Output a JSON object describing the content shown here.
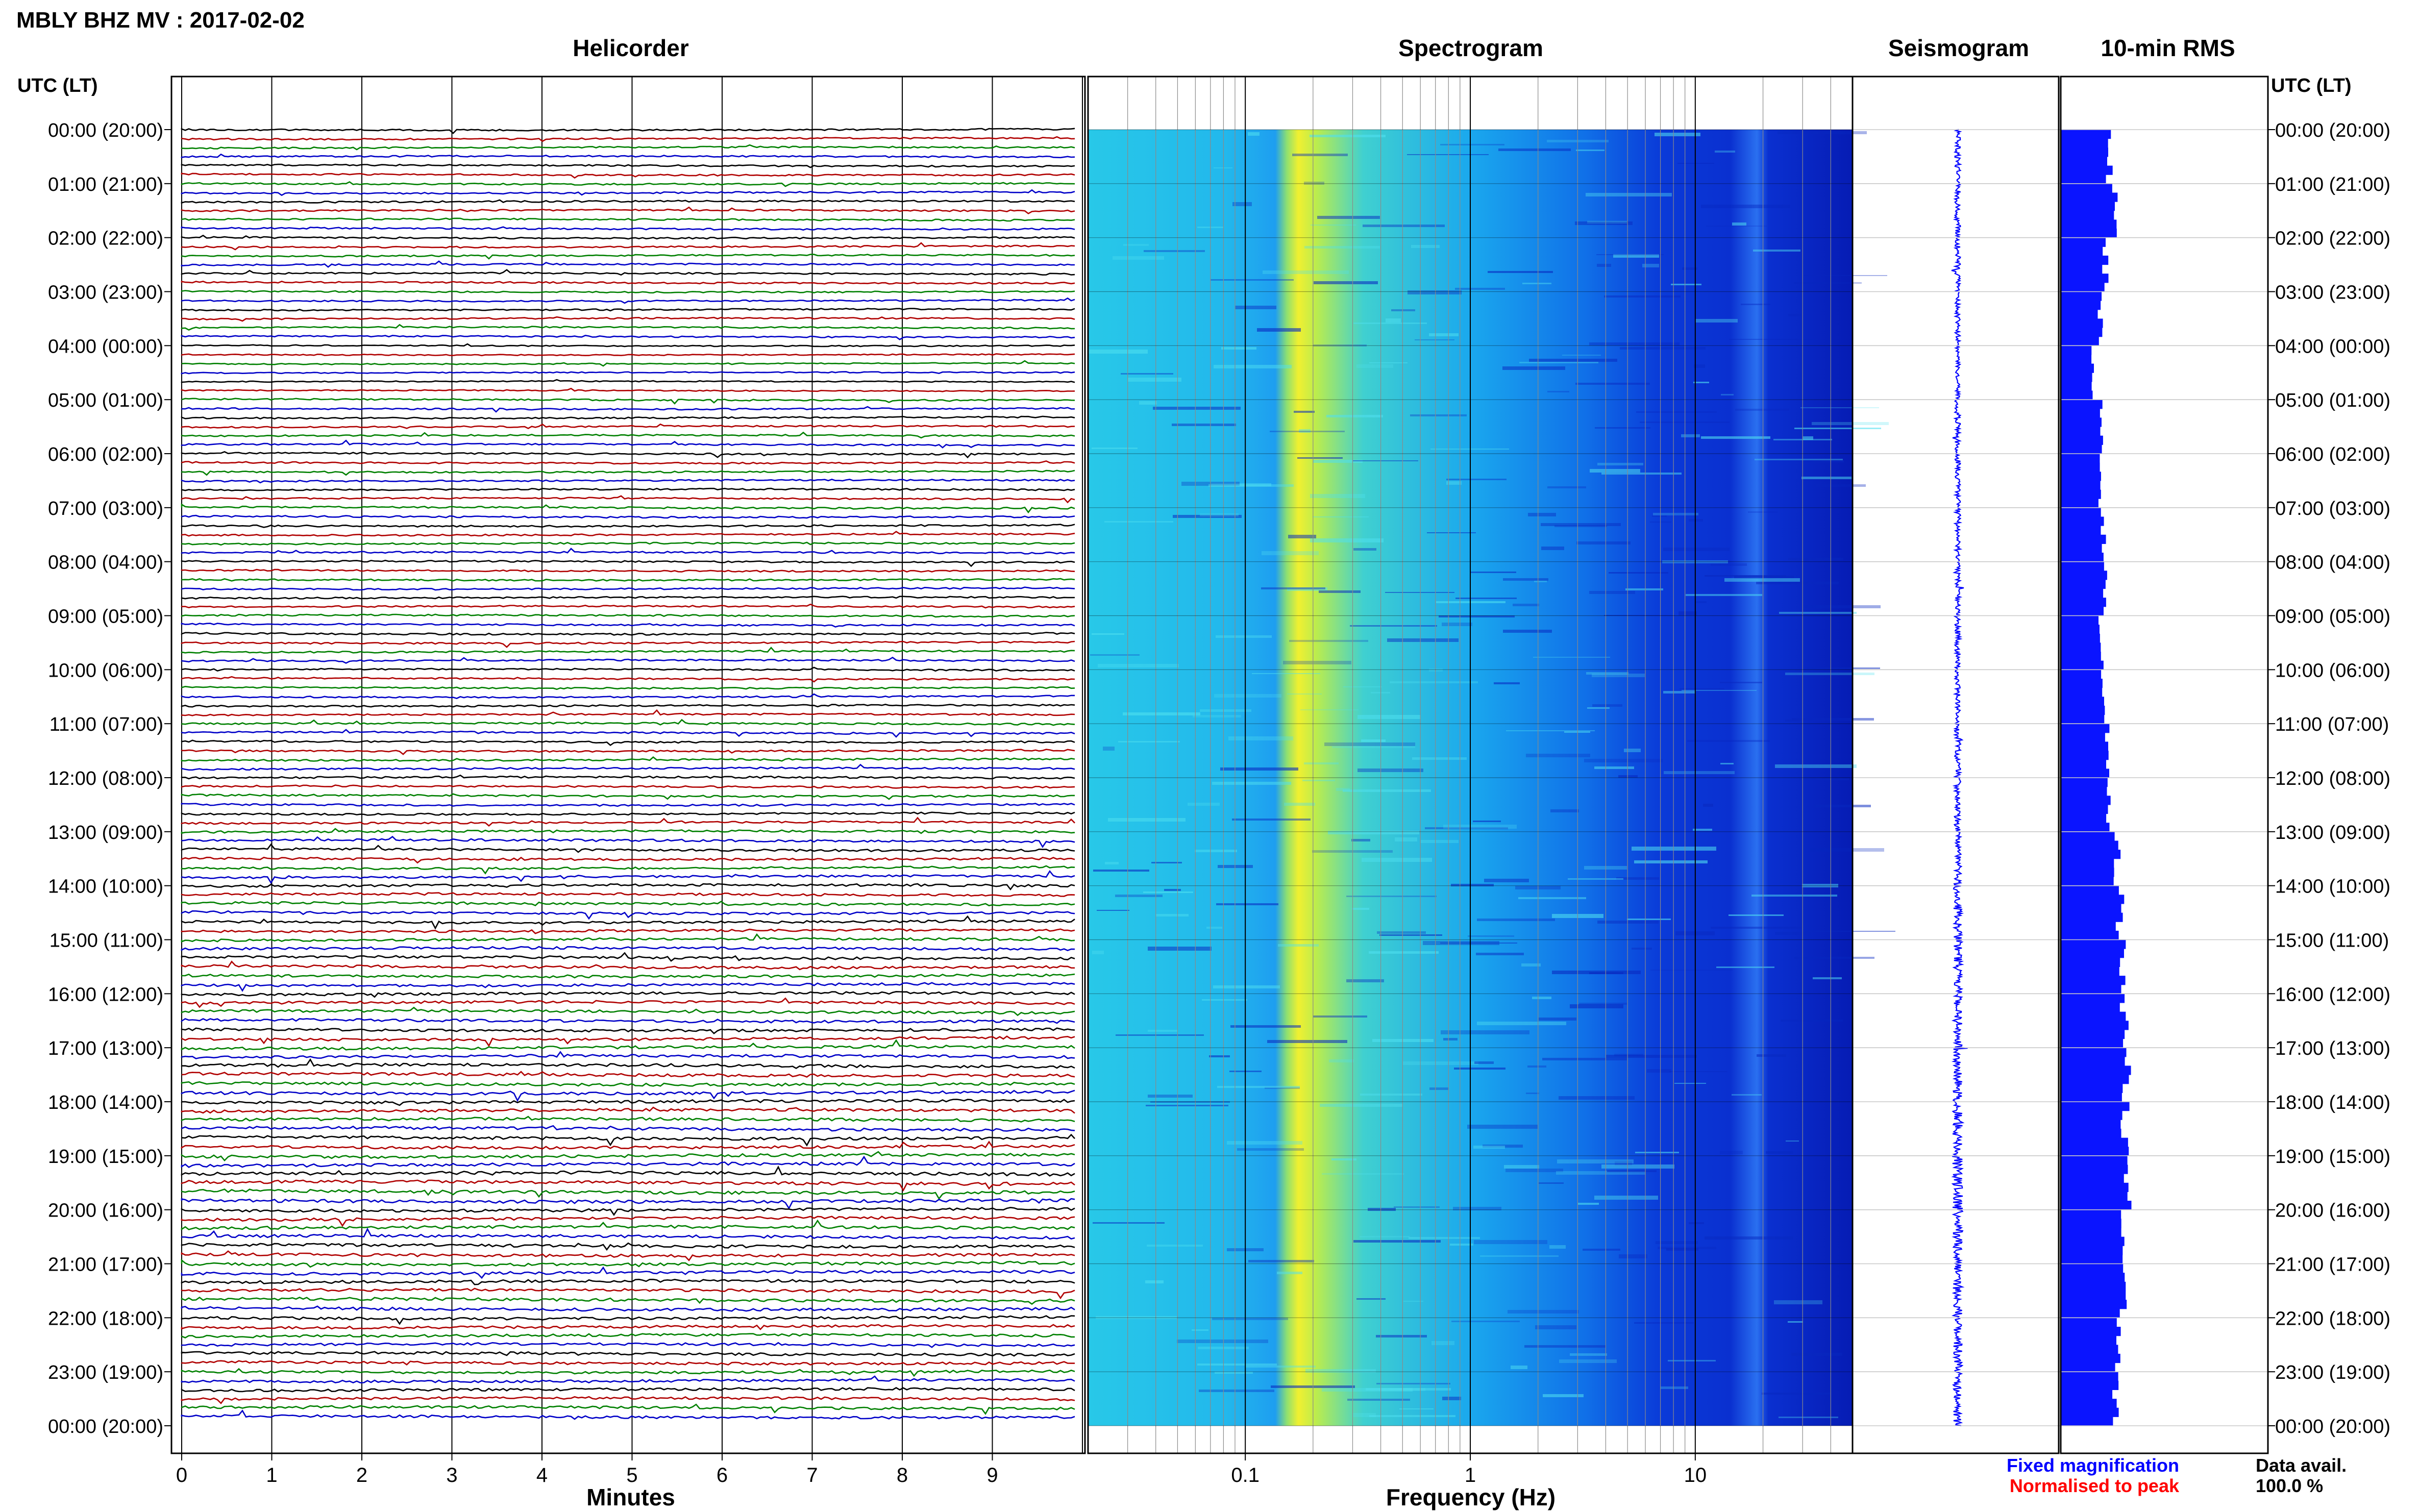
{
  "header": {
    "title": "MBLY BHZ MV : 2017-02-02",
    "left_axis_title": "UTC (LT)",
    "right_axis_title": "UTC (LT)"
  },
  "panels": {
    "helicorder": "Helicorder",
    "spectrogram": "Spectrogram",
    "seismogram": "Seismogram",
    "rms": "10-min RMS"
  },
  "chart_data": {
    "type": "heatmap",
    "time_labels": [
      "00:00 (20:00)",
      "01:00 (21:00)",
      "02:00 (22:00)",
      "03:00 (23:00)",
      "04:00 (00:00)",
      "05:00 (01:00)",
      "06:00 (02:00)",
      "07:00 (03:00)",
      "08:00 (04:00)",
      "09:00 (05:00)",
      "10:00 (06:00)",
      "11:00 (07:00)",
      "12:00 (08:00)",
      "13:00 (09:00)",
      "14:00 (10:00)",
      "15:00 (11:00)",
      "16:00 (12:00)",
      "17:00 (13:00)",
      "18:00 (14:00)",
      "19:00 (15:00)",
      "20:00 (16:00)",
      "21:00 (17:00)",
      "22:00 (18:00)",
      "23:00 (19:00)",
      "00:00 (20:00)"
    ],
    "helicorder": {
      "xlabel": "Minutes",
      "xticks": [
        "0",
        "1",
        "2",
        "3",
        "4",
        "5",
        "6",
        "7",
        "8",
        "9"
      ],
      "xlim": [
        0,
        10
      ],
      "trace_colors": [
        "#000000",
        "#b00000",
        "#008000",
        "#0000c8"
      ]
    },
    "spectrogram": {
      "xlabel": "Frequency (Hz)",
      "xscale": "log",
      "xlim": [
        0.02,
        50
      ],
      "xticks": [
        "0.1",
        "1",
        "10"
      ],
      "xtick_values": [
        0.1,
        1,
        10
      ],
      "peak_frequency_hz": 0.22,
      "narrow_band_hz": 27
    },
    "seismogram": {
      "relative_amplitude_by_hour": [
        0.3,
        0.32,
        0.3,
        0.28,
        0.22,
        0.3,
        0.3,
        0.32,
        0.3,
        0.32,
        0.3,
        0.34,
        0.36,
        0.42,
        0.45,
        0.48,
        0.5,
        0.55,
        0.55,
        0.6,
        0.55,
        0.55,
        0.5,
        0.48
      ]
    },
    "rms": {
      "values_by_hour": [
        0.6,
        0.65,
        0.55,
        0.48,
        0.4,
        0.5,
        0.48,
        0.52,
        0.55,
        0.5,
        0.52,
        0.58,
        0.6,
        0.68,
        0.72,
        0.75,
        0.78,
        0.8,
        0.78,
        0.82,
        0.78,
        0.76,
        0.72,
        0.68
      ]
    },
    "legend": {
      "fixed": "Fixed magnification",
      "normalised": "Normalised to peak",
      "fixed_color": "#0000ff",
      "normalised_color": "#ff0000"
    },
    "availability": {
      "label": "Data avail.",
      "value": "100.0 %"
    }
  }
}
